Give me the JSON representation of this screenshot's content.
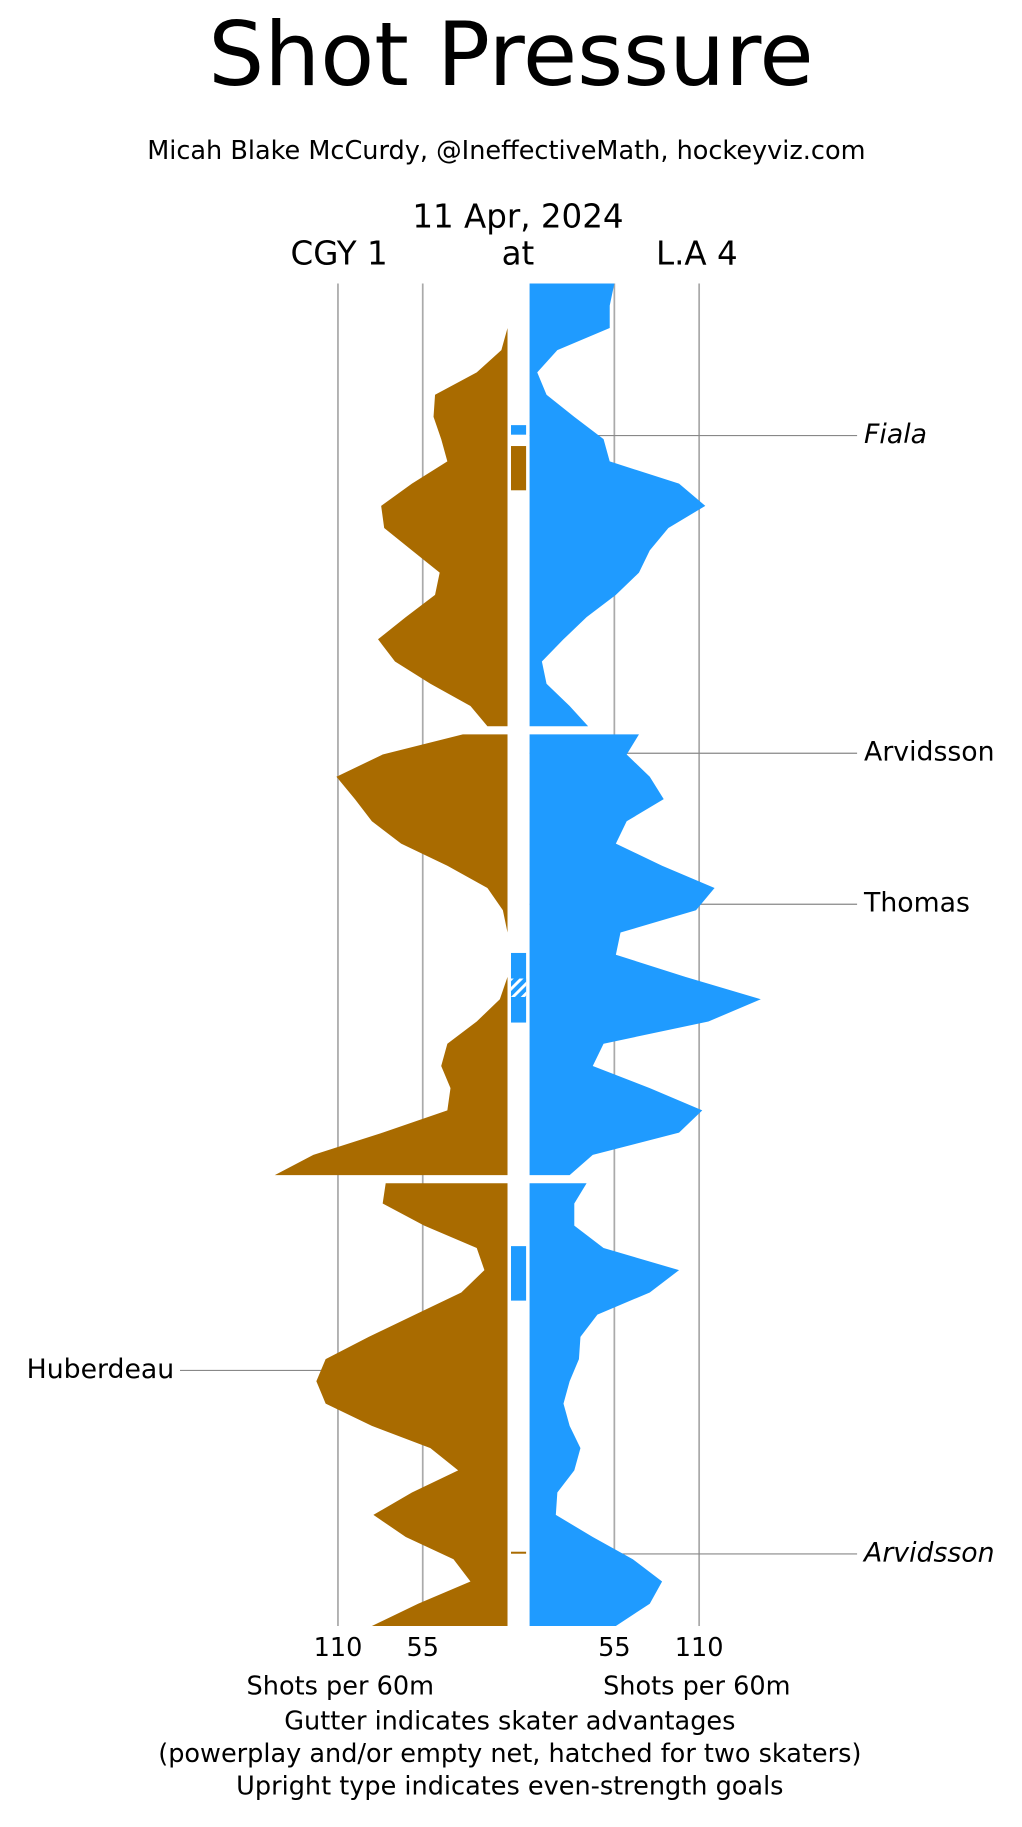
{
  "chart_data": {
    "type": "shot-pressure",
    "title": "Shot Pressure",
    "subtitle": "Micah Blake McCurdy, @IneffectiveMath, hockeyviz.com",
    "date": "11 Apr, 2024",
    "separator": "at",
    "xlim": [
      0,
      110
    ],
    "x_axis_label": "Shots per 60m",
    "periods_x": [
      [
        0,
        1,
        2,
        3,
        4,
        5,
        6,
        7,
        8,
        9,
        10,
        11,
        12,
        13,
        14,
        15,
        16,
        17,
        18,
        19,
        20
      ],
      [
        20,
        21,
        22,
        23,
        24,
        25,
        26,
        27,
        28,
        29,
        30,
        31,
        32,
        33,
        34,
        35,
        36,
        37,
        38,
        39,
        40
      ],
      [
        40,
        41,
        42,
        43,
        44,
        45,
        46,
        47,
        48,
        49,
        50,
        51,
        52,
        53,
        54,
        55,
        56,
        57,
        58,
        59,
        60
      ]
    ],
    "series": [
      {
        "name": "CGY 1",
        "color": "#a96b00",
        "side": "left",
        "xticks": [
          110,
          55
        ],
        "periods": [
          [
            0,
            0,
            0,
            4,
            20,
            47,
            48,
            43,
            39,
            62,
            82,
            80,
            62,
            44,
            47,
            66,
            84,
            73,
            50,
            24,
            13
          ],
          [
            29,
            81,
            111,
            99,
            88,
            69,
            39,
            13,
            3,
            0,
            0,
            0,
            5,
            20,
            39,
            43,
            37,
            39,
            81,
            126,
            151
          ],
          [
            79,
            81,
            54,
            20,
            15,
            30,
            60,
            90,
            118,
            124,
            118,
            88,
            50,
            32,
            62,
            87,
            66,
            35,
            24,
            58,
            88
          ]
        ]
      },
      {
        "name": "L.A 4",
        "color": "#1f9bff",
        "side": "right",
        "xticks": [
          55,
          110
        ],
        "periods": [
          [
            55,
            52,
            52,
            18,
            5,
            11,
            29,
            48,
            52,
            97,
            114,
            90,
            78,
            71,
            56,
            37,
            22,
            8,
            11,
            26,
            38
          ],
          [
            71,
            63,
            78,
            87,
            63,
            56,
            86,
            120,
            108,
            59,
            56,
            101,
            150,
            116,
            48,
            41,
            78,
            112,
            97,
            41,
            26
          ],
          [
            37,
            29,
            29,
            48,
            97,
            78,
            44,
            33,
            32,
            26,
            22,
            26,
            33,
            29,
            18,
            17,
            41,
            67,
            86,
            78,
            56
          ]
        ]
      }
    ],
    "gutter": [
      {
        "team": 1,
        "start": 6.37,
        "end": 6.8,
        "hatched": false
      },
      {
        "team": 0,
        "start": 7.31,
        "end": 9.3,
        "hatched": false
      },
      {
        "team": 1,
        "start": 29.92,
        "end": 33.05,
        "hatched": false
      },
      {
        "team": 1,
        "start": 31.07,
        "end": 31.9,
        "hatched": true
      },
      {
        "team": 1,
        "start": 42.92,
        "end": 45.37,
        "hatched": false
      },
      {
        "team": 0,
        "start": 56.66,
        "end": 56.75,
        "hatched": false
      }
    ],
    "goals": [
      {
        "label": "Fiala",
        "team": 1,
        "minute": 6.84,
        "even_strength": false
      },
      {
        "label": "Arvidsson",
        "team": 1,
        "minute": 20.94,
        "even_strength": true
      },
      {
        "label": "Thomas",
        "team": 1,
        "minute": 27.73,
        "even_strength": true
      },
      {
        "label": "Huberdeau",
        "team": 0,
        "minute": 48.51,
        "even_strength": true
      },
      {
        "label": "Arvidsson",
        "team": 1,
        "minute": 56.76,
        "even_strength": false
      }
    ],
    "footnote": [
      "Gutter indicates skater advantages",
      "(powerplay and/or empty net, hatched for two skaters)",
      "Upright type indicates even-strength goals"
    ]
  }
}
